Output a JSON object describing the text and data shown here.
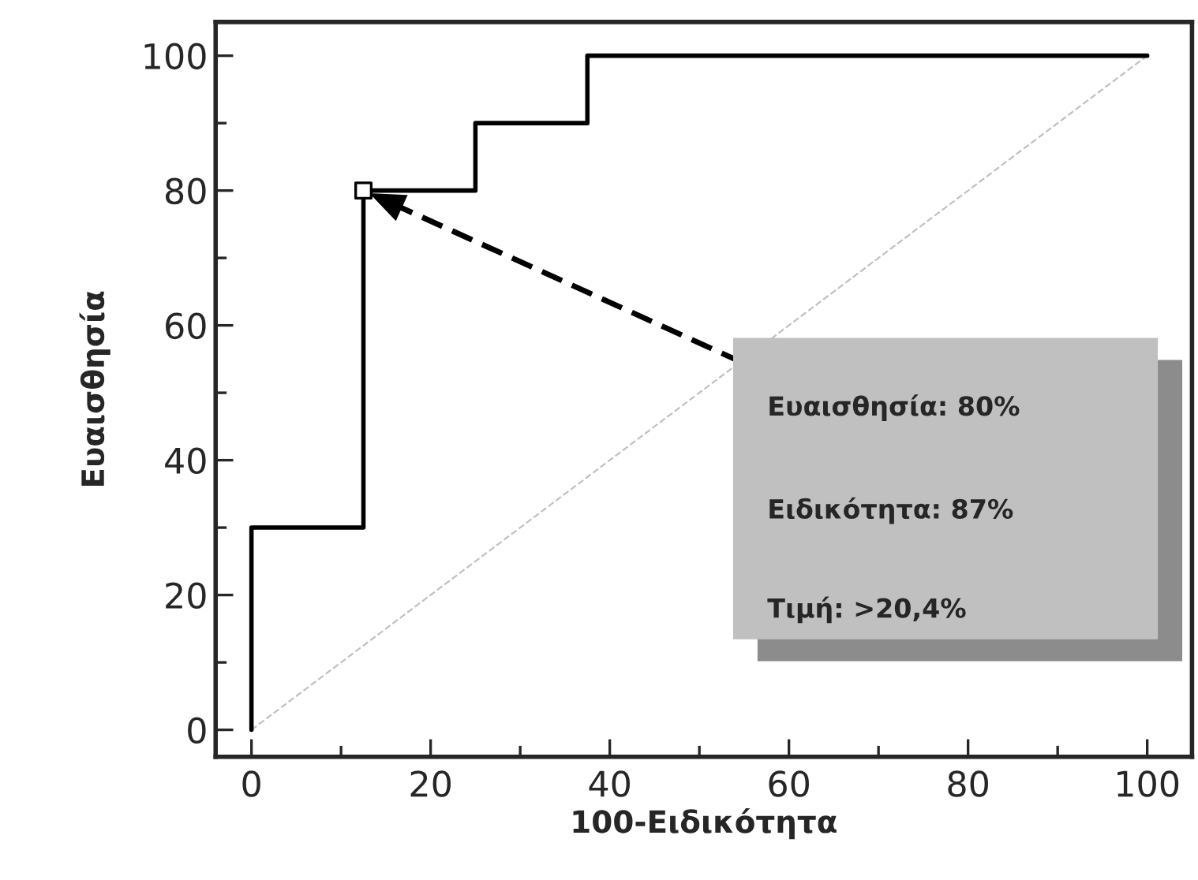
{
  "chart_data": {
    "type": "line",
    "xlabel": "100-Ειδικότητα",
    "ylabel": "Ευαισθησία",
    "series": [
      {
        "color": "#c0c0c0",
        "line_style": "dashed",
        "x": [
          0,
          100
        ],
        "values": [
          0,
          100
        ]
      },
      {
        "color": "#000000",
        "line_style": "solid",
        "x": [
          0,
          0,
          12.5,
          12.5,
          25,
          25,
          37.5,
          37.5,
          100
        ],
        "values": [
          0,
          30,
          30,
          80,
          80,
          90,
          90,
          100,
          100
        ]
      },
      {
        "type": "scatter",
        "color": "#000000",
        "marker": "square",
        "x": [
          12.5
        ],
        "values": [
          80
        ]
      }
    ],
    "annotations": [
      "Ευαισθησία: 80%",
      "Ειδικότητα: 87%",
      "Τιμή: >20,4%"
    ],
    "xlim": [
      -4,
      105
    ],
    "ylim": [
      -4,
      105
    ],
    "xticks": [
      0,
      20,
      40,
      60,
      80,
      100
    ],
    "yticks": [
      0,
      20,
      40,
      60,
      80,
      100
    ],
    "grid": false,
    "legend": false
  }
}
